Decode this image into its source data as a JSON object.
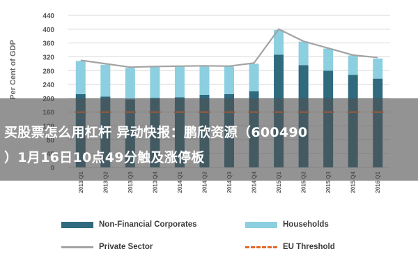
{
  "chart_data": {
    "type": "bar",
    "ylabel": "Per Cent of GDP",
    "ylim": [
      0,
      440
    ],
    "yticks": [
      0,
      40,
      80,
      120,
      160,
      200,
      240,
      280,
      320,
      360,
      400,
      440
    ],
    "grid": true,
    "legend_position": "bottom",
    "categories": [
      "2013 Q1",
      "2013 Q2",
      "2013 Q3",
      "2013 Q4",
      "2014 Q1",
      "2014 Q2",
      "2014 Q3",
      "2014 Q4",
      "2015 Q1",
      "2015 Q2",
      "2015 Q3",
      "2015 Q4",
      "2016 Q1"
    ],
    "series": [
      {
        "name": "Non-Financial Corporates",
        "kind": "bar-stacked",
        "color": "#2f6a7e",
        "values": [
          212,
          205,
          197,
          201,
          203,
          210,
          212,
          220,
          326,
          296,
          280,
          268,
          257
        ]
      },
      {
        "name": "Households",
        "kind": "bar-stacked",
        "color": "#8ccfe0",
        "values": [
          96,
          92,
          91,
          91,
          89,
          84,
          80,
          80,
          72,
          68,
          64,
          56,
          58
        ]
      },
      {
        "name": "Private Sector",
        "kind": "line",
        "color": "#a3a3a3",
        "values": [
          310,
          300,
          290,
          292,
          293,
          294,
          293,
          302,
          400,
          365,
          345,
          325,
          318
        ]
      },
      {
        "name": "EU Threshold",
        "kind": "dashed-line",
        "color": "#e06a2b",
        "values": [
          160,
          160,
          160,
          160,
          160,
          160,
          160,
          160,
          160,
          160,
          160,
          160,
          160
        ]
      }
    ]
  },
  "overlay": {
    "headline_line1": "买股票怎么用杠杆 异动快报：鹏欣资源（600490",
    "headline_line2": "）1月16日10点49分触及涨停板"
  }
}
